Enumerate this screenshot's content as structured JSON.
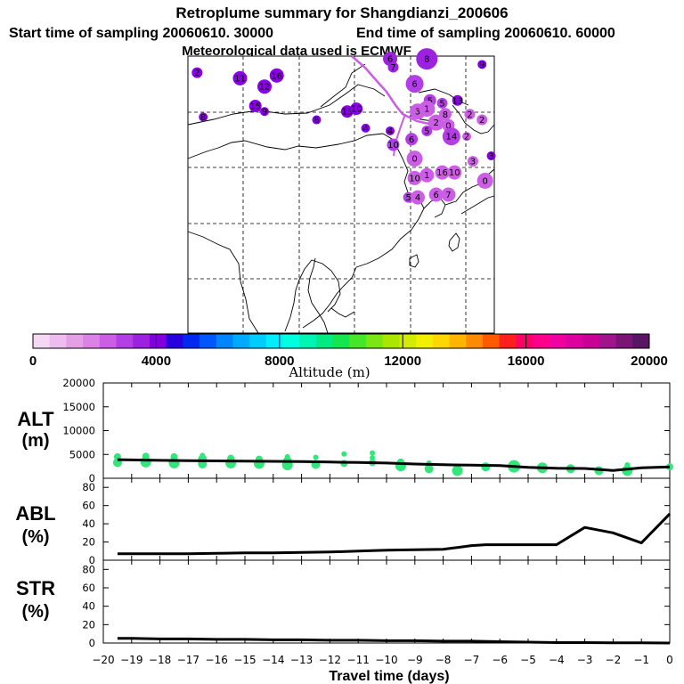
{
  "title": {
    "line1": "Retroplume summary for Shangdianzi_200606",
    "line2a": "Start time of sampling 20060610. 30000",
    "line2b": "End time of sampling 20060610. 60000",
    "line3": "Meteorological data used is ECMWF"
  },
  "colorbar": {
    "label": "Altitude  (m)",
    "ticks": [
      "0",
      "4000",
      "8000",
      "12000",
      "16000",
      "20000"
    ],
    "colors": [
      "#f4d8f4",
      "#eebcee",
      "#e4a0e4",
      "#dc82e6",
      "#cc5ee6",
      "#b43ee6",
      "#9c22e0",
      "#8200dc",
      "#2800e0",
      "#0028f0",
      "#0056ff",
      "#0084ff",
      "#00aaff",
      "#00ccff",
      "#00eeff",
      "#00ffe0",
      "#00f5b4",
      "#00eb82",
      "#14e650",
      "#46e628",
      "#7ae614",
      "#aae600",
      "#d2eb00",
      "#f0f000",
      "#ffd700",
      "#ffb400",
      "#ff8c00",
      "#ff5a00",
      "#ff1e1e",
      "#ff0064",
      "#ff008c",
      "#f000a0",
      "#dc00a0",
      "#c80096",
      "#a0148c",
      "#7c1478",
      "#5a1464"
    ]
  },
  "map": {
    "points": [
      {
        "label": "2",
        "lon": 0.03,
        "lat": 0.94,
        "color": "#8a00e6",
        "r": 6
      },
      {
        "label": "11",
        "lon": 0.17,
        "lat": 0.92,
        "color": "#8a00e6",
        "r": 8
      },
      {
        "label": "12",
        "lon": 0.25,
        "lat": 0.89,
        "color": "#8a00e6",
        "r": 8
      },
      {
        "label": "16",
        "lon": 0.29,
        "lat": 0.93,
        "color": "#8a00e6",
        "r": 8
      },
      {
        "label": "15",
        "lon": 0.22,
        "lat": 0.82,
        "color": "#8a00e6",
        "r": 7
      },
      {
        "label": "9",
        "lon": 0.25,
        "lat": 0.8,
        "color": "#8a00e6",
        "r": 5
      },
      {
        "label": "8",
        "lon": 0.05,
        "lat": 0.78,
        "color": "#8a00e6",
        "r": 5
      },
      {
        "label": "6",
        "lon": 0.42,
        "lat": 0.77,
        "color": "#8a00e6",
        "r": 5
      },
      {
        "label": "13",
        "lon": 0.52,
        "lat": 0.8,
        "color": "#8a00e6",
        "r": 7
      },
      {
        "label": "10",
        "lon": 0.55,
        "lat": 0.81,
        "color": "#8a00e6",
        "r": 7
      },
      {
        "label": "4",
        "lon": 0.58,
        "lat": 0.74,
        "color": "#8a00e6",
        "r": 5
      },
      {
        "label": "4",
        "lon": 0.66,
        "lat": 0.73,
        "color": "#8a00e6",
        "r": 5
      },
      {
        "label": "9",
        "lon": 0.96,
        "lat": 0.97,
        "color": "#8a00e6",
        "r": 5
      },
      {
        "label": "6",
        "lon": 0.66,
        "lat": 0.99,
        "color": "#9c22e0",
        "r": 8
      },
      {
        "label": "7",
        "lon": 0.67,
        "lat": 0.96,
        "color": "#9c22e0",
        "r": 6
      },
      {
        "label": "8",
        "lon": 0.78,
        "lat": 0.99,
        "color": "#9c22e0",
        "r": 12
      },
      {
        "label": "6",
        "lon": 0.74,
        "lat": 0.9,
        "color": "#b43ee6",
        "r": 10
      },
      {
        "label": "5",
        "lon": 0.79,
        "lat": 0.84,
        "color": "#b43ee6",
        "r": 7
      },
      {
        "label": "13",
        "lon": 0.88,
        "lat": 0.84,
        "color": "#8a00e6",
        "r": 6
      },
      {
        "label": "5",
        "lon": 0.83,
        "lat": 0.83,
        "color": "#b43ee6",
        "r": 6
      },
      {
        "label": "3",
        "lon": 0.75,
        "lat": 0.8,
        "color": "#cc5ee6",
        "r": 9
      },
      {
        "label": "1",
        "lon": 0.78,
        "lat": 0.81,
        "color": "#cc5ee6",
        "r": 9
      },
      {
        "label": "8",
        "lon": 0.84,
        "lat": 0.79,
        "color": "#cc5ee6",
        "r": 7
      },
      {
        "label": "2",
        "lon": 0.92,
        "lat": 0.79,
        "color": "#cc5ee6",
        "r": 6
      },
      {
        "label": "2",
        "lon": 0.96,
        "lat": 0.77,
        "color": "#cc5ee6",
        "r": 6
      },
      {
        "label": "2",
        "lon": 0.81,
        "lat": 0.76,
        "color": "#cc5ee6",
        "r": 9
      },
      {
        "label": "0",
        "lon": 0.85,
        "lat": 0.75,
        "color": "#cc5ee6",
        "r": 7
      },
      {
        "label": "14",
        "lon": 0.86,
        "lat": 0.71,
        "color": "#b43ee6",
        "r": 10
      },
      {
        "label": "2",
        "lon": 0.91,
        "lat": 0.71,
        "color": "#cc5ee6",
        "r": 5
      },
      {
        "label": "5",
        "lon": 0.78,
        "lat": 0.73,
        "color": "#b43ee6",
        "r": 6
      },
      {
        "label": "6",
        "lon": 0.73,
        "lat": 0.7,
        "color": "#b43ee6",
        "r": 7
      },
      {
        "label": "10",
        "lon": 0.67,
        "lat": 0.68,
        "color": "#b43ee6",
        "r": 7
      },
      {
        "label": "0",
        "lon": 0.74,
        "lat": 0.63,
        "color": "#cc5ee6",
        "r": 9
      },
      {
        "label": "3",
        "lon": 0.99,
        "lat": 0.64,
        "color": "#8a00e6",
        "r": 5
      },
      {
        "label": "3",
        "lon": 0.93,
        "lat": 0.62,
        "color": "#cc5ee6",
        "r": 6
      },
      {
        "label": "10",
        "lon": 0.74,
        "lat": 0.56,
        "color": "#cc5ee6",
        "r": 8
      },
      {
        "label": "1",
        "lon": 0.78,
        "lat": 0.57,
        "color": "#cc5ee6",
        "r": 8
      },
      {
        "label": "16",
        "lon": 0.83,
        "lat": 0.58,
        "color": "#cc5ee6",
        "r": 8
      },
      {
        "label": "10",
        "lon": 0.87,
        "lat": 0.58,
        "color": "#cc5ee6",
        "r": 8
      },
      {
        "label": "0",
        "lon": 0.97,
        "lat": 0.55,
        "color": "#cc5ee6",
        "r": 9
      },
      {
        "label": "5",
        "lon": 0.72,
        "lat": 0.49,
        "color": "#b43ee6",
        "r": 6
      },
      {
        "label": "4",
        "lon": 0.75,
        "lat": 0.49,
        "color": "#cc5ee6",
        "r": 8
      },
      {
        "label": "6",
        "lon": 0.81,
        "lat": 0.5,
        "color": "#cc5ee6",
        "r": 8
      },
      {
        "label": "7",
        "lon": 0.85,
        "lat": 0.5,
        "color": "#cc5ee6",
        "r": 8
      }
    ]
  },
  "chart_data": [
    {
      "type": "scatter",
      "id": "alt",
      "title": "ALT",
      "ylabel_line1": "ALT",
      "ylabel_line2": "(m)",
      "xlim": [
        -20,
        0
      ],
      "ylim": [
        0,
        20000
      ],
      "yticks": [
        "20000",
        "15000",
        "10000",
        "5000",
        "0"
      ],
      "mean_line": {
        "x": [
          -19.5,
          -19,
          -18,
          -17,
          -16,
          -15,
          -14,
          -13,
          -12,
          -11,
          -10,
          -9,
          -8,
          -7,
          -6,
          -5,
          -4,
          -3,
          -2,
          -1,
          0
        ],
        "y": [
          3900,
          3850,
          3750,
          3700,
          3650,
          3600,
          3550,
          3500,
          3400,
          3300,
          3200,
          3000,
          2850,
          2750,
          2650,
          2300,
          2100,
          2050,
          1650,
          2200,
          2400
        ]
      },
      "points": {
        "x": [
          -19.5,
          -19.5,
          -18.5,
          -18.5,
          -17.5,
          -17.5,
          -16.5,
          -16.5,
          -16.5,
          -15.5,
          -15.5,
          -14.5,
          -14.5,
          -13.5,
          -13.5,
          -13.5,
          -12.5,
          -12.5,
          -11.5,
          -11.5,
          -10.5,
          -10.5,
          -10.5,
          -9.5,
          -9.5,
          -8.5,
          -8.5,
          -7.5,
          -6.5,
          -5.5,
          -4.5,
          -3.5,
          -2.5,
          -1.5,
          -1.5,
          0
        ],
        "y": [
          3300,
          4500,
          3400,
          4600,
          3200,
          4500,
          3000,
          4000,
          4800,
          3200,
          4200,
          3100,
          4000,
          2800,
          3600,
          4500,
          2900,
          4400,
          3100,
          5100,
          3300,
          4300,
          5300,
          2600,
          3400,
          2000,
          3200,
          1600,
          2400,
          2500,
          2200,
          2000,
          1600,
          1600,
          2800,
          2400
        ],
        "size": [
          5,
          4,
          6,
          4,
          6,
          4,
          5,
          5,
          3,
          6,
          4,
          6,
          4,
          6,
          5,
          3,
          5,
          3,
          4,
          3,
          4,
          3,
          3,
          6,
          4,
          5,
          3,
          6,
          5,
          7,
          6,
          5,
          5,
          6,
          3,
          4
        ],
        "color": "#33e67a"
      }
    },
    {
      "type": "line",
      "id": "abl",
      "title": "ABL",
      "ylabel_line1": "ABL",
      "ylabel_line2": "(%)",
      "xlim": [
        -20,
        0
      ],
      "ylim": [
        0,
        90
      ],
      "yticks": [
        "80",
        "60",
        "40",
        "20",
        "0"
      ],
      "x": [
        -19.5,
        -19,
        -18,
        -17,
        -16,
        -15,
        -14,
        -13,
        -12,
        -11,
        -10,
        -9,
        -8,
        -7.5,
        -7,
        -6.5,
        -6,
        -5,
        -4,
        -3,
        -2,
        -1,
        0
      ],
      "y": [
        7,
        7,
        7,
        7,
        7.5,
        8,
        8,
        8.5,
        9,
        10,
        11,
        11.5,
        12,
        14,
        16,
        17,
        17,
        17,
        17,
        36,
        30,
        19,
        51
      ]
    },
    {
      "type": "line",
      "id": "str",
      "title": "STR",
      "ylabel_line1": "STR",
      "ylabel_line2": "(%)",
      "xlim": [
        -20,
        0
      ],
      "ylim": [
        0,
        90
      ],
      "yticks": [
        "80",
        "60",
        "40",
        "20",
        "0"
      ],
      "xlabel": "Travel time (days)",
      "xticks": [
        "-20",
        "-19",
        "-18",
        "-17",
        "-16",
        "-15",
        "-14",
        "-13",
        "-12",
        "-11",
        "-10",
        "-9",
        "-8",
        "-7",
        "-6",
        "-5",
        "-4",
        "-3",
        "-2",
        "-1",
        "0"
      ],
      "x": [
        -19.5,
        -19,
        -18,
        -17,
        -16,
        -15,
        -14,
        -13,
        -12,
        -11,
        -10,
        -9,
        -8,
        -7,
        -6,
        -5,
        -4,
        -3,
        -2,
        -1,
        0
      ],
      "y": [
        5,
        5,
        4.5,
        4.5,
        4,
        4,
        3.5,
        3.5,
        3,
        3,
        2.5,
        2.5,
        2,
        2,
        1.5,
        1,
        0.5,
        0.5,
        0.2,
        0.2,
        0
      ]
    }
  ]
}
